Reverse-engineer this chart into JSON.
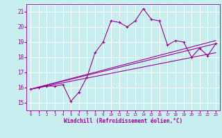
{
  "xlabel": "Windchill (Refroidissement éolien,°C)",
  "bg_color": "#c8eef0",
  "line_color": "#990099",
  "grid_color": "#ffffff",
  "xlim": [
    -0.5,
    23.5
  ],
  "ylim": [
    14.5,
    21.5
  ],
  "yticks": [
    15,
    16,
    17,
    18,
    19,
    20,
    21
  ],
  "xticks": [
    0,
    1,
    2,
    3,
    4,
    5,
    6,
    7,
    8,
    9,
    10,
    11,
    12,
    13,
    14,
    15,
    16,
    17,
    18,
    19,
    20,
    21,
    22,
    23
  ],
  "curve1_x": [
    0,
    1,
    2,
    3,
    4,
    5,
    6,
    7,
    8,
    9,
    10,
    11,
    12,
    13,
    14,
    15,
    16,
    17,
    18,
    19,
    20,
    21,
    22,
    23
  ],
  "curve1_y": [
    15.9,
    16.0,
    16.1,
    16.1,
    16.2,
    15.1,
    15.7,
    16.7,
    18.3,
    19.0,
    20.4,
    20.3,
    20.0,
    20.4,
    21.2,
    20.5,
    20.4,
    18.8,
    19.1,
    19.0,
    18.0,
    18.6,
    18.1,
    18.9
  ],
  "line1_x": [
    0,
    23
  ],
  "line1_y": [
    15.9,
    18.9
  ],
  "line2_x": [
    0,
    23
  ],
  "line2_y": [
    15.9,
    19.1
  ],
  "line3_x": [
    0,
    23
  ],
  "line3_y": [
    15.9,
    18.3
  ],
  "lw": 0.8,
  "marker_size": 3.5
}
